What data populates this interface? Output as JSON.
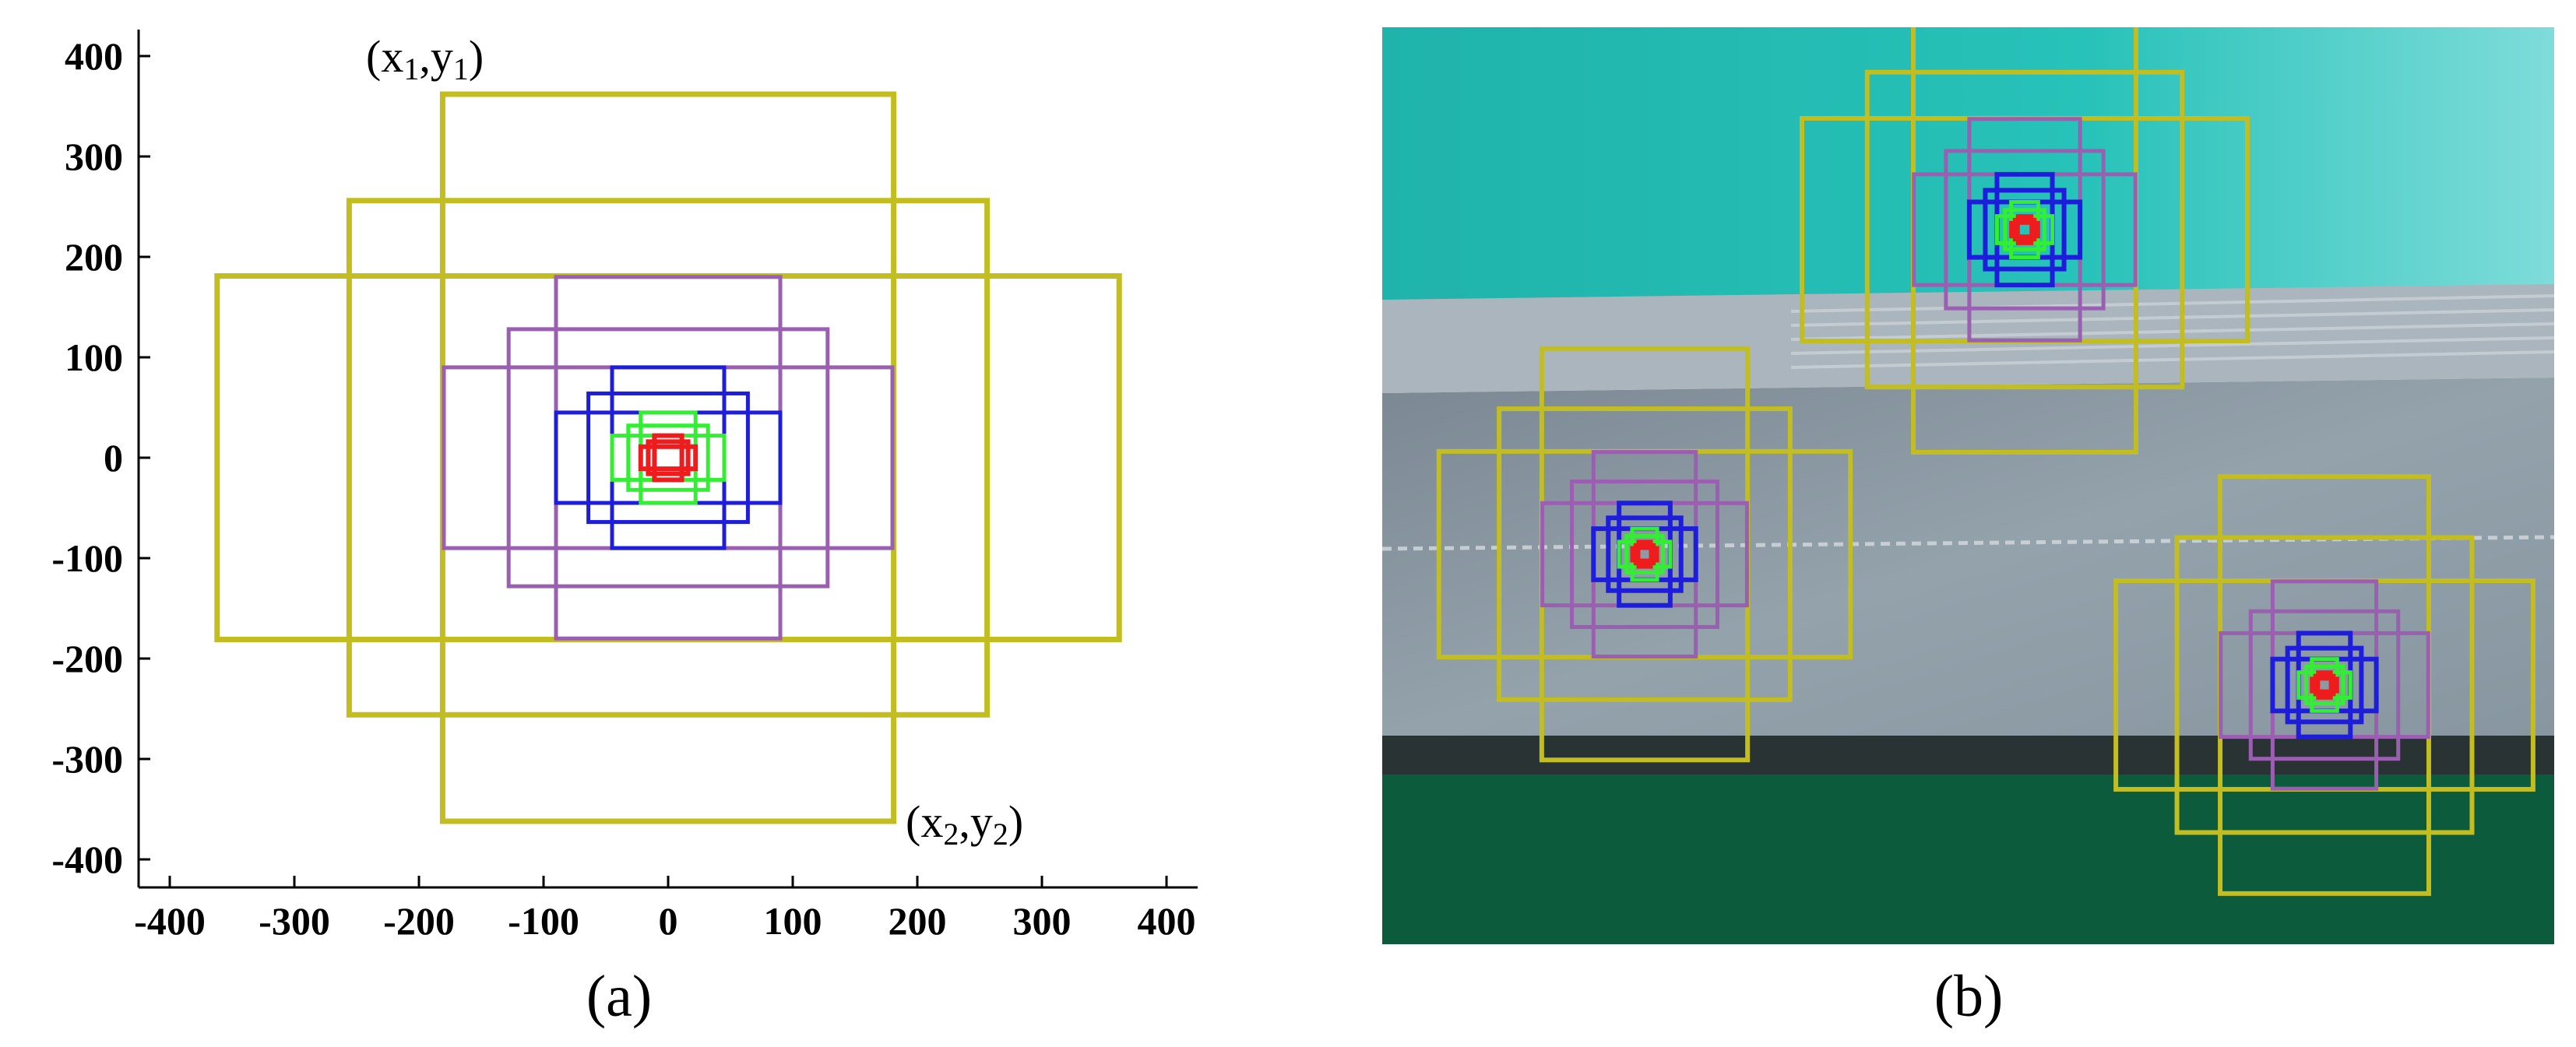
{
  "panel_a": {
    "caption": "(a)",
    "corner_top_left": {
      "base_x": "(x",
      "sub_1": "1",
      "mid": ",y",
      "sub_2": "1",
      "close": ")"
    },
    "corner_bottom_right": {
      "base_x": "(x",
      "sub_1": "2",
      "mid": ",y",
      "sub_2": "2",
      "close": ")"
    },
    "x_ticks": [
      "-400",
      "-300",
      "-200",
      "-100",
      "0",
      "100",
      "200",
      "300",
      "400"
    ],
    "y_ticks": [
      "400",
      "300",
      "200",
      "100",
      "0",
      "-100",
      "-200",
      "-300",
      "-400"
    ],
    "x_tick_values": [
      -400,
      -300,
      -200,
      -100,
      0,
      100,
      200,
      300,
      400
    ],
    "y_tick_values": [
      400,
      300,
      200,
      100,
      0,
      -100,
      -200,
      -300,
      -400
    ],
    "axis_range": [
      -420,
      420
    ],
    "anchor_groups": [
      {
        "color": "#c2bd20",
        "half_sizes": [
          [
            181,
            362
          ],
          [
            256,
            256
          ],
          [
            362,
            181
          ]
        ]
      },
      {
        "color": "#9a5fb0",
        "half_sizes": [
          [
            90,
            180
          ],
          [
            128,
            128
          ],
          [
            180,
            90
          ]
        ]
      },
      {
        "color": "#1d1ddb",
        "half_sizes": [
          [
            45,
            90
          ],
          [
            64,
            64
          ],
          [
            90,
            45
          ]
        ]
      },
      {
        "color": "#33ee33",
        "half_sizes": [
          [
            22,
            45
          ],
          [
            32,
            32
          ],
          [
            45,
            22
          ]
        ]
      },
      {
        "color": "#ee1c1c",
        "half_sizes": [
          [
            11,
            22
          ],
          [
            16,
            16
          ],
          [
            22,
            11
          ]
        ]
      }
    ]
  },
  "panel_b": {
    "caption": "(b)",
    "colors": {
      "sky": "#22bcb4",
      "body": "#8c9ba5",
      "ground": "#0c5b3c"
    }
  }
}
